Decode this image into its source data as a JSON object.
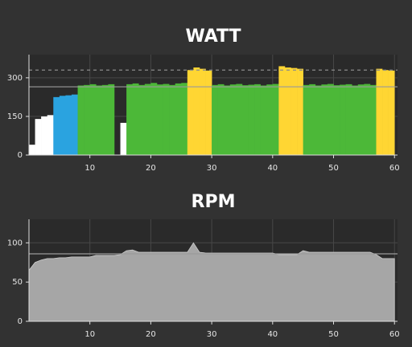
{
  "chart_data": [
    {
      "type": "bar",
      "title": "WATT",
      "x": [
        0.5,
        1.5,
        2.5,
        3.5,
        4.5,
        5.5,
        6.5,
        7.5,
        8.5,
        9.5,
        10.5,
        11.5,
        12.5,
        13.5,
        14.5,
        15.5,
        16.5,
        17.5,
        18.5,
        19.5,
        20.5,
        21.5,
        22.5,
        23.5,
        24.5,
        25.5,
        26.5,
        27.5,
        28.5,
        29.5,
        30.5,
        31.5,
        32.5,
        33.5,
        34.5,
        35.5,
        36.5,
        37.5,
        38.5,
        39.5,
        40.5,
        41.5,
        42.5,
        43.5,
        44.5,
        45.5,
        46.5,
        47.5,
        48.5,
        49.5,
        50.5,
        51.5,
        52.5,
        53.5,
        54.5,
        55.5,
        56.5,
        57.5,
        58.5,
        59.5
      ],
      "values": [
        40,
        140,
        150,
        155,
        225,
        230,
        232,
        235,
        270,
        272,
        275,
        270,
        272,
        275,
        0,
        125,
        275,
        278,
        272,
        276,
        280,
        274,
        276,
        272,
        278,
        280,
        330,
        340,
        335,
        328,
        272,
        275,
        270,
        274,
        276,
        271,
        273,
        275,
        270,
        274,
        276,
        345,
        340,
        338,
        335,
        272,
        275,
        270,
        274,
        276,
        271,
        273,
        275,
        270,
        274,
        276,
        272,
        335,
        330,
        328
      ],
      "colors": [
        "#ffffff",
        "#ffffff",
        "#ffffff",
        "#ffffff",
        "#2aa3e0",
        "#2aa3e0",
        "#2aa3e0",
        "#2aa3e0",
        "#4cb838",
        "#4cb838",
        "#4cb838",
        "#4cb838",
        "#4cb838",
        "#4cb838",
        "#ffffff",
        "#ffffff",
        "#4cb838",
        "#4cb838",
        "#4cb838",
        "#4cb838",
        "#4cb838",
        "#4cb838",
        "#4cb838",
        "#4cb838",
        "#4cb838",
        "#4cb838",
        "#ffd633",
        "#ffd633",
        "#ffd633",
        "#ffd633",
        "#4cb838",
        "#4cb838",
        "#4cb838",
        "#4cb838",
        "#4cb838",
        "#4cb838",
        "#4cb838",
        "#4cb838",
        "#4cb838",
        "#4cb838",
        "#4cb838",
        "#ffd633",
        "#ffd633",
        "#ffd633",
        "#ffd633",
        "#4cb838",
        "#4cb838",
        "#4cb838",
        "#4cb838",
        "#4cb838",
        "#4cb838",
        "#4cb838",
        "#4cb838",
        "#4cb838",
        "#4cb838",
        "#4cb838",
        "#4cb838",
        "#ffd633",
        "#ffd633",
        "#ffd633"
      ],
      "xlim": [
        0,
        60.5
      ],
      "xticks": [
        10,
        20,
        30,
        40,
        50,
        60
      ],
      "ylim": [
        0,
        390
      ],
      "yticks": [
        0,
        150,
        300
      ],
      "grid": true,
      "reference_lines": [
        {
          "value": 330,
          "style": "dashed"
        },
        {
          "value": 265,
          "style": "solid"
        }
      ]
    },
    {
      "type": "area",
      "title": "RPM",
      "x": [
        0,
        1,
        2,
        3,
        4,
        5,
        6,
        7,
        8,
        9,
        10,
        11,
        12,
        13,
        14,
        15,
        16,
        17,
        18,
        19,
        20,
        21,
        22,
        23,
        24,
        25,
        26,
        27,
        28,
        29,
        30,
        31,
        32,
        33,
        34,
        35,
        36,
        37,
        38,
        39,
        40,
        41,
        42,
        43,
        44,
        45,
        46,
        47,
        48,
        49,
        50,
        51,
        52,
        53,
        54,
        55,
        56,
        57,
        58,
        59,
        60
      ],
      "values": [
        65,
        75,
        78,
        80,
        80,
        81,
        81,
        82,
        82,
        82,
        82,
        84,
        84,
        84,
        84,
        85,
        90,
        91,
        88,
        88,
        88,
        88,
        88,
        88,
        88,
        88,
        88,
        100,
        88,
        87,
        87,
        87,
        87,
        87,
        87,
        87,
        87,
        87,
        87,
        87,
        87,
        85,
        85,
        85,
        85,
        90,
        88,
        88,
        88,
        88,
        88,
        88,
        88,
        88,
        88,
        88,
        88,
        85,
        80,
        80,
        80
      ],
      "color": "#a6a6a6",
      "xlim": [
        0,
        60.5
      ],
      "xticks": [
        10,
        20,
        30,
        40,
        50,
        60
      ],
      "ylim": [
        0,
        130
      ],
      "yticks": [
        0,
        50,
        100
      ],
      "grid": true,
      "reference_lines": [
        {
          "value": 86,
          "style": "solid"
        }
      ]
    }
  ]
}
